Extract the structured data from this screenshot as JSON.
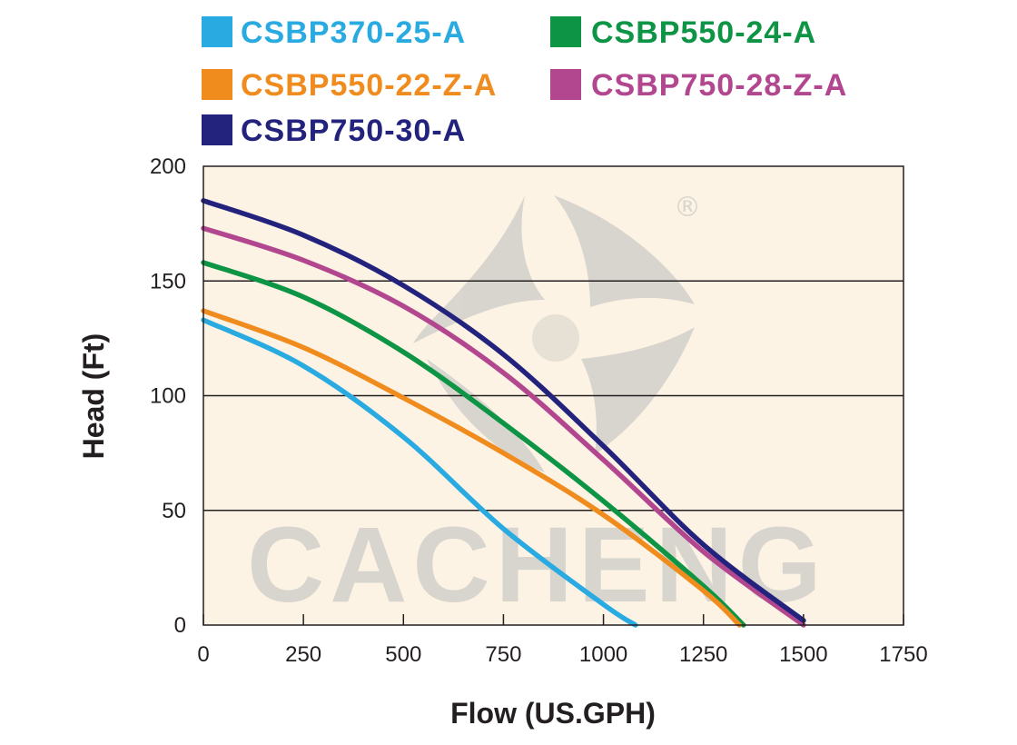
{
  "chart_data": {
    "type": "line",
    "xlabel": "Flow (US.GPH)",
    "ylabel": "Head (Ft)",
    "xlim": [
      0,
      1750
    ],
    "ylim": [
      0,
      200
    ],
    "x_ticks": [
      "0",
      "250",
      "500",
      "750",
      "1000",
      "1250",
      "1500",
      "1750"
    ],
    "y_ticks": [
      "0",
      "50",
      "100",
      "150",
      "200"
    ],
    "grid": "horizontal",
    "legend_position": "top",
    "background_color": "#fcf3e4",
    "series": [
      {
        "name": "CSBP370-25-A",
        "color": "#29abe2",
        "x": [
          0,
          250,
          500,
          750,
          1000,
          1080
        ],
        "y": [
          133,
          113,
          82,
          42,
          9,
          0
        ]
      },
      {
        "name": "CSBP550-24-A",
        "color": "#0d9444",
        "x": [
          0,
          250,
          500,
          750,
          1000,
          1250,
          1350
        ],
        "y": [
          158,
          143,
          119,
          88,
          54,
          17,
          0
        ]
      },
      {
        "name": "CSBP550-22-Z-A",
        "color": "#f08b1e",
        "x": [
          0,
          250,
          500,
          750,
          1000,
          1250,
          1340
        ],
        "y": [
          137,
          121,
          99,
          75,
          48,
          15,
          0
        ]
      },
      {
        "name": "CSBP750-28-Z-A",
        "color": "#b2478f",
        "x": [
          0,
          250,
          500,
          750,
          1000,
          1250,
          1500
        ],
        "y": [
          173,
          159,
          139,
          110,
          72,
          32,
          0
        ]
      },
      {
        "name": "CSBP750-30-A",
        "color": "#23237e",
        "x": [
          0,
          250,
          500,
          750,
          1000,
          1250,
          1500
        ],
        "y": [
          185,
          170,
          148,
          118,
          78,
          35,
          2
        ]
      }
    ]
  },
  "watermark": {
    "brand": "CACHENG",
    "registered_mark": "®",
    "color": "#d2d0cb"
  }
}
